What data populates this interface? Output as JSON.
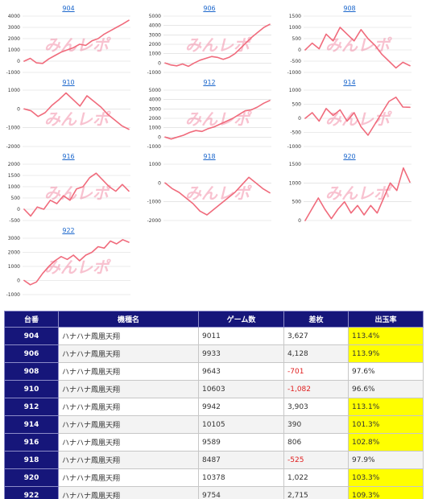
{
  "colors": {
    "line": "#f06b7c",
    "header": "#16167a",
    "highlight": "#ffff00",
    "negative": "#e02020",
    "link": "#1a66cc"
  },
  "watermark": "みんレポ",
  "chart_data": [
    {
      "type": "line",
      "title": "904",
      "ylim": [
        -1000,
        4000
      ],
      "yticks": [
        "4000",
        "3000",
        "2000",
        "1000",
        "0",
        "-1000"
      ],
      "tickvals": [
        4000,
        3000,
        2000,
        1000,
        0,
        -1000
      ],
      "y": [
        0,
        250,
        -150,
        -200,
        200,
        500,
        800,
        1000,
        1200,
        1500,
        1400,
        1800,
        2000,
        2400,
        2700,
        3000,
        3300,
        3627
      ]
    },
    {
      "type": "line",
      "title": "906",
      "ylim": [
        -1000,
        5000
      ],
      "yticks": [
        "5000",
        "4000",
        "3000",
        "2000",
        "1000",
        "0",
        "-1000"
      ],
      "tickvals": [
        5000,
        4000,
        3000,
        2000,
        1000,
        0,
        -1000
      ],
      "y": [
        0,
        -200,
        -300,
        -100,
        -350,
        0,
        300,
        500,
        700,
        600,
        400,
        600,
        1000,
        1600,
        2200,
        2800,
        3300,
        3800,
        4128
      ]
    },
    {
      "type": "line",
      "title": "908",
      "ylim": [
        -1000,
        1500
      ],
      "yticks": [
        "1500",
        "1000",
        "500",
        "0",
        "-500",
        "-1000"
      ],
      "tickvals": [
        1500,
        1000,
        500,
        0,
        -500,
        -1000
      ],
      "y": [
        0,
        300,
        50,
        700,
        400,
        1000,
        700,
        400,
        900,
        500,
        200,
        -200,
        -500,
        -800,
        -550,
        -701
      ]
    },
    {
      "type": "line",
      "title": "910",
      "ylim": [
        -2000,
        1000
      ],
      "yticks": [
        "1000",
        "0",
        "-1000",
        "-2000"
      ],
      "tickvals": [
        1000,
        0,
        -1000,
        -2000
      ],
      "y": [
        0,
        -100,
        -400,
        -200,
        200,
        500,
        850,
        500,
        150,
        700,
        400,
        100,
        -300,
        -600,
        -900,
        -1082
      ]
    },
    {
      "type": "line",
      "title": "912",
      "ylim": [
        -1000,
        5000
      ],
      "yticks": [
        "5000",
        "4000",
        "3000",
        "2000",
        "1000",
        "0",
        "-1000"
      ],
      "tickvals": [
        5000,
        4000,
        3000,
        2000,
        1000,
        0,
        -1000
      ],
      "y": [
        0,
        -200,
        0,
        200,
        500,
        700,
        600,
        900,
        1100,
        1400,
        1700,
        2000,
        2400,
        2800,
        2900,
        3200,
        3600,
        3903
      ]
    },
    {
      "type": "line",
      "title": "914",
      "ylim": [
        -1000,
        1000
      ],
      "yticks": [
        "1000",
        "500",
        "0",
        "-500",
        "-1000"
      ],
      "tickvals": [
        1000,
        500,
        0,
        -500,
        -1000
      ],
      "y": [
        0,
        200,
        -100,
        350,
        100,
        300,
        -100,
        200,
        -300,
        -600,
        -200,
        200,
        600,
        750,
        400,
        390
      ]
    },
    {
      "type": "line",
      "title": "916",
      "ylim": [
        -500,
        2000
      ],
      "yticks": [
        "2000",
        "1500",
        "1000",
        "500",
        "0",
        "-500"
      ],
      "tickvals": [
        2000,
        1500,
        1000,
        500,
        0,
        -500
      ],
      "y": [
        0,
        -300,
        100,
        0,
        400,
        250,
        600,
        400,
        900,
        1000,
        1400,
        1600,
        1300,
        1000,
        800,
        1100,
        806
      ]
    },
    {
      "type": "line",
      "title": "918",
      "ylim": [
        -2000,
        1000
      ],
      "yticks": [
        "1000",
        "0",
        "-1000",
        "-2000"
      ],
      "tickvals": [
        1000,
        0,
        -1000,
        -2000
      ],
      "y": [
        0,
        -300,
        -500,
        -800,
        -1100,
        -1500,
        -1700,
        -1400,
        -1100,
        -800,
        -500,
        -100,
        300,
        0,
        -300,
        -525
      ]
    },
    {
      "type": "line",
      "title": "920",
      "ylim": [
        0,
        1500
      ],
      "yticks": [
        "1500",
        "1000",
        "500",
        "0"
      ],
      "tickvals": [
        1500,
        1000,
        500,
        0
      ],
      "y": [
        0,
        300,
        600,
        300,
        50,
        300,
        500,
        200,
        400,
        150,
        400,
        200,
        600,
        1000,
        800,
        1400,
        1022
      ]
    },
    {
      "type": "line",
      "title": "922",
      "ylim": [
        -1000,
        3000
      ],
      "yticks": [
        "3000",
        "2000",
        "1000",
        "0",
        "-1000"
      ],
      "tickvals": [
        3000,
        2000,
        1000,
        0,
        -1000
      ],
      "y": [
        0,
        -300,
        -100,
        500,
        1000,
        1400,
        1700,
        1500,
        1800,
        1400,
        1800,
        2000,
        2400,
        2300,
        2800,
        2600,
        2900,
        2715
      ]
    }
  ],
  "table": {
    "headers": [
      "台番",
      "機種名",
      "ゲーム数",
      "差枚",
      "出玉率"
    ],
    "rows": [
      {
        "no": "904",
        "name": "ハナハナ鳳凰天翔",
        "games": "9011",
        "diff": "3,627",
        "rate": "113.4%",
        "neg": false,
        "hl": true
      },
      {
        "no": "906",
        "name": "ハナハナ鳳凰天翔",
        "games": "9933",
        "diff": "4,128",
        "rate": "113.9%",
        "neg": false,
        "hl": true
      },
      {
        "no": "908",
        "name": "ハナハナ鳳凰天翔",
        "games": "9643",
        "diff": "-701",
        "rate": "97.6%",
        "neg": true,
        "hl": false
      },
      {
        "no": "910",
        "name": "ハナハナ鳳凰天翔",
        "games": "10603",
        "diff": "-1,082",
        "rate": "96.6%",
        "neg": true,
        "hl": false
      },
      {
        "no": "912",
        "name": "ハナハナ鳳凰天翔",
        "games": "9942",
        "diff": "3,903",
        "rate": "113.1%",
        "neg": false,
        "hl": true
      },
      {
        "no": "914",
        "name": "ハナハナ鳳凰天翔",
        "games": "10105",
        "diff": "390",
        "rate": "101.3%",
        "neg": false,
        "hl": true
      },
      {
        "no": "916",
        "name": "ハナハナ鳳凰天翔",
        "games": "9589",
        "diff": "806",
        "rate": "102.8%",
        "neg": false,
        "hl": true
      },
      {
        "no": "918",
        "name": "ハナハナ鳳凰天翔",
        "games": "8487",
        "diff": "-525",
        "rate": "97.9%",
        "neg": true,
        "hl": false
      },
      {
        "no": "920",
        "name": "ハナハナ鳳凰天翔",
        "games": "10378",
        "diff": "1,022",
        "rate": "103.3%",
        "neg": false,
        "hl": true
      },
      {
        "no": "922",
        "name": "ハナハナ鳳凰天翔",
        "games": "9754",
        "diff": "2,715",
        "rate": "109.3%",
        "neg": false,
        "hl": true
      }
    ]
  }
}
